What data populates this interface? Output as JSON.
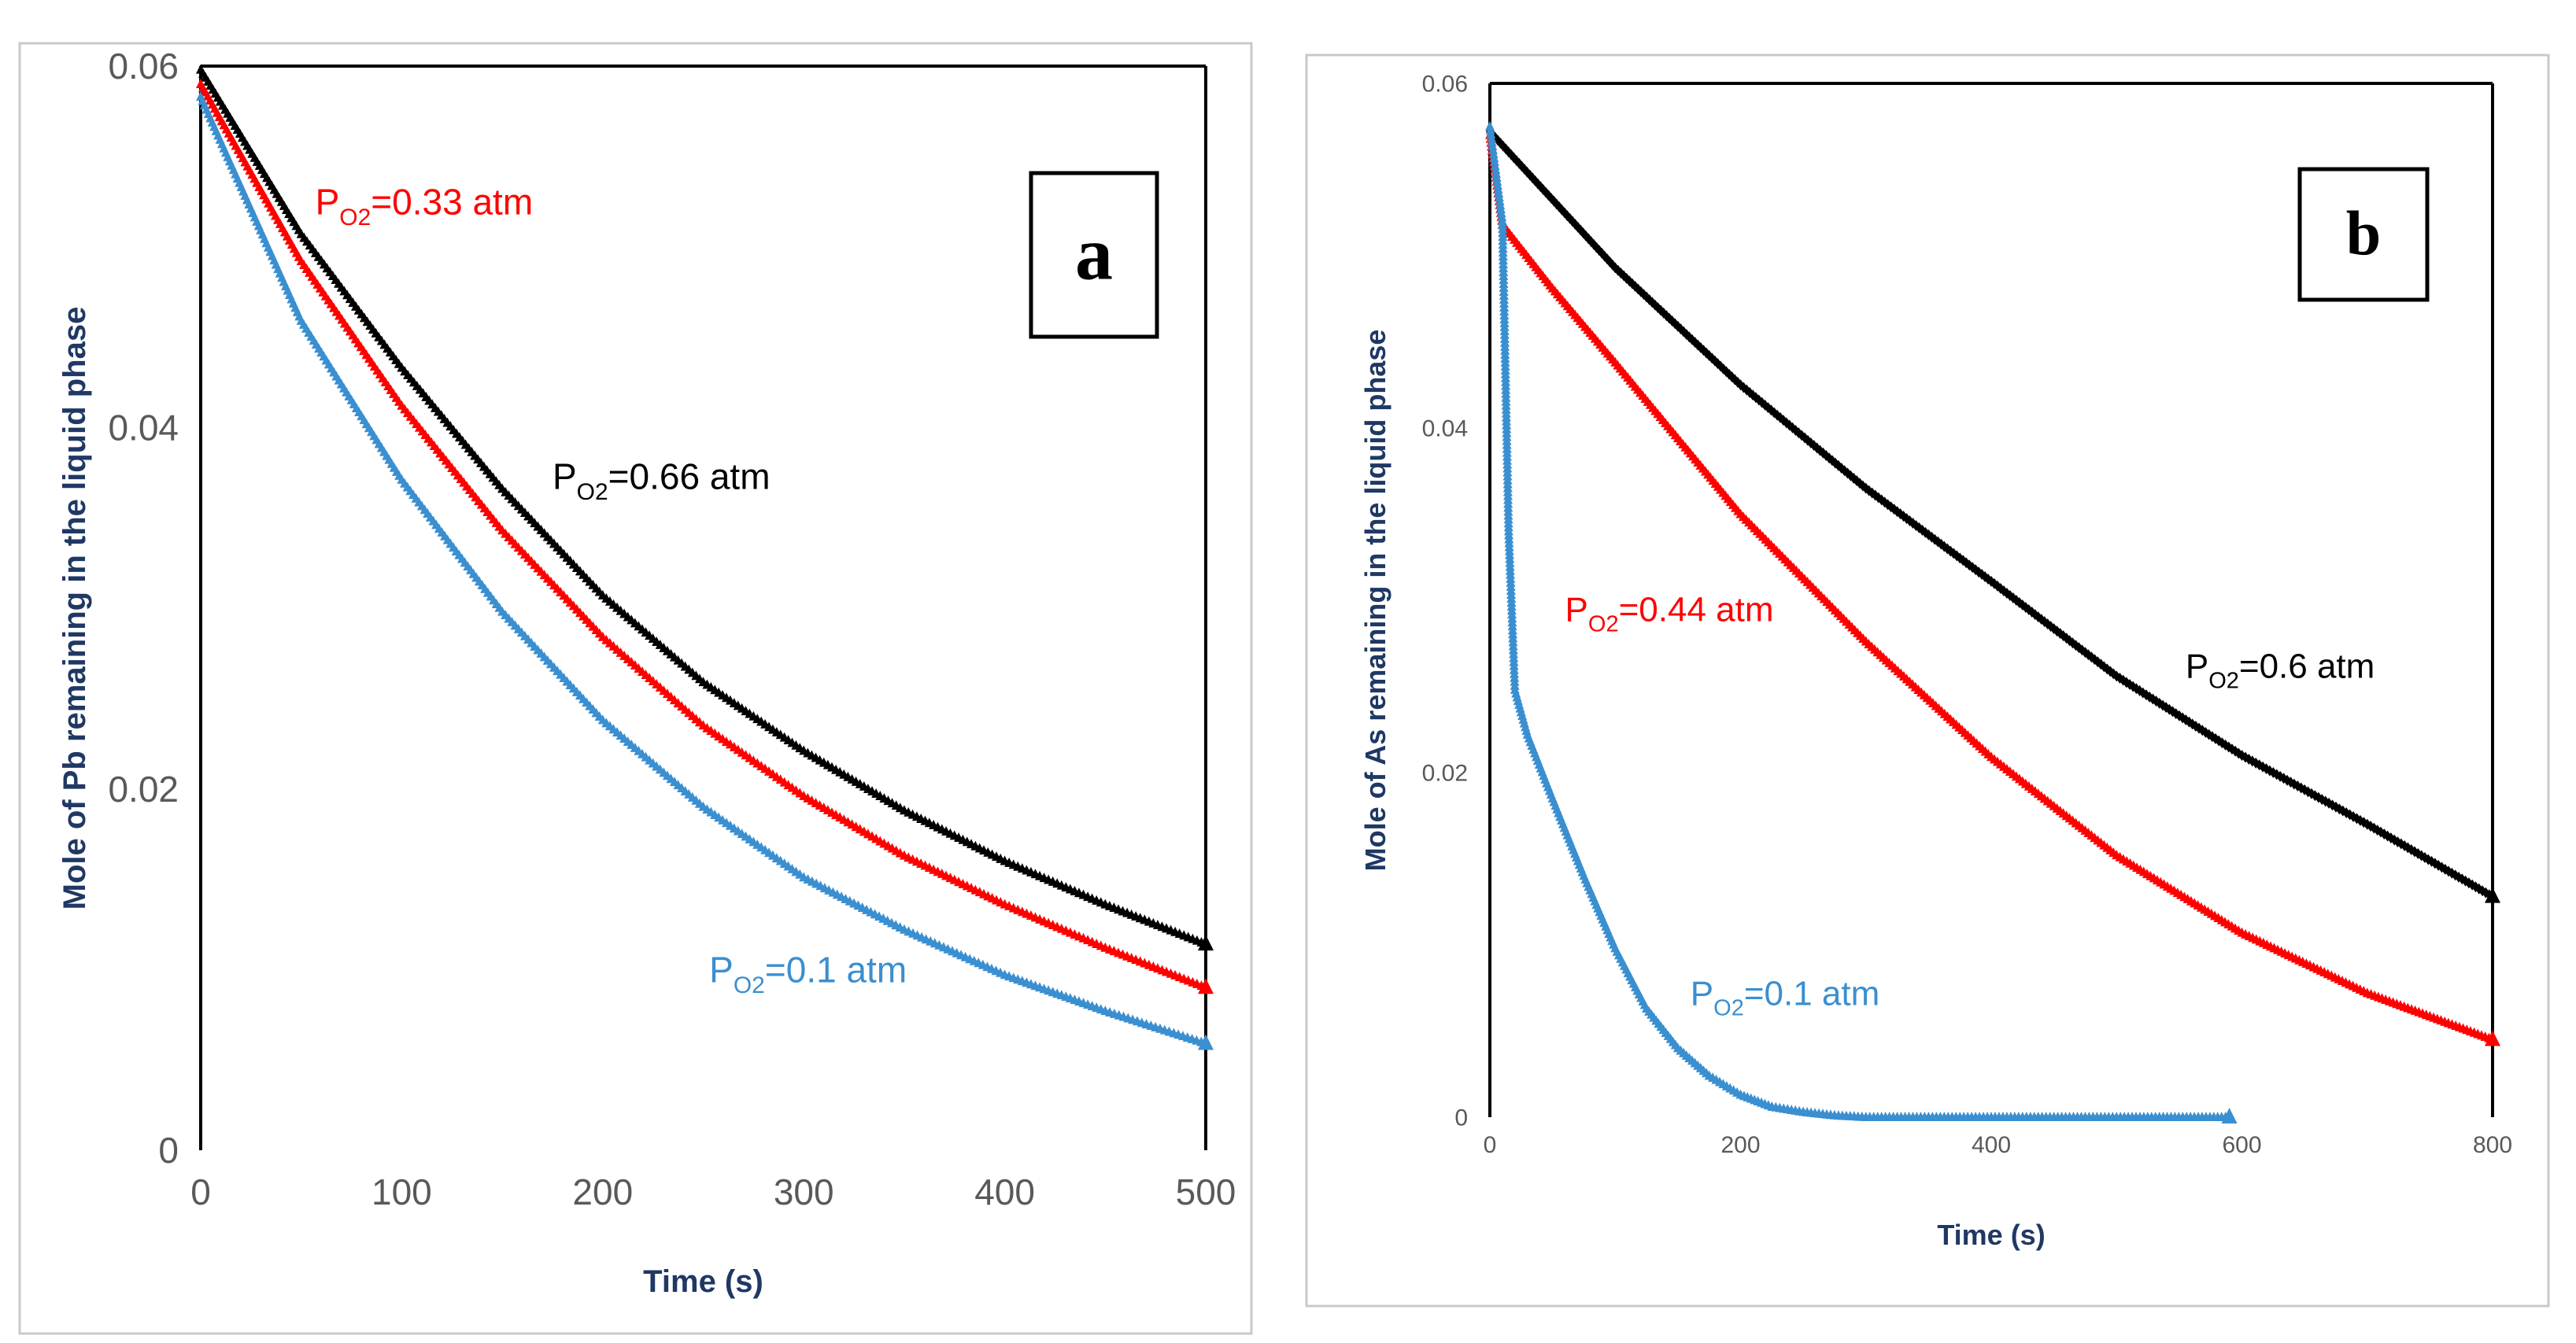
{
  "chart_data": [
    {
      "type": "line",
      "panel": "a",
      "xlabel": "Time (s)",
      "ylabel": "Mole of Pb remaining in the liquid phase",
      "xlim": [
        0,
        500
      ],
      "ylim": [
        0,
        0.06
      ],
      "xticks": [
        "0",
        "100",
        "200",
        "300",
        "400",
        "500"
      ],
      "yticks": [
        "0",
        "0.02",
        "0.04",
        "0.06"
      ],
      "grid": false,
      "series": [
        {
          "name": "P O2=0.66 atm",
          "sym": "P",
          "sub": "O2",
          "rest": "=0.66 atm",
          "color": "#000000",
          "marker": "triangle",
          "label_pos": [
            175,
            0.0366
          ],
          "x": [
            0,
            50,
            100,
            150,
            200,
            250,
            300,
            350,
            400,
            450,
            500
          ],
          "y": [
            0.0598,
            0.0507,
            0.0433,
            0.0366,
            0.0307,
            0.0259,
            0.0221,
            0.0188,
            0.016,
            0.0136,
            0.0114
          ]
        },
        {
          "name": "P O2=0.33 atm",
          "sym": "P",
          "sub": "O2",
          "rest": "=0.33 atm",
          "color": "#ff0000",
          "marker": "triangle",
          "label_pos": [
            57,
            0.0518
          ],
          "x": [
            0,
            50,
            100,
            150,
            200,
            250,
            300,
            350,
            400,
            450,
            500
          ],
          "y": [
            0.059,
            0.0492,
            0.0412,
            0.0343,
            0.0284,
            0.0235,
            0.0196,
            0.0163,
            0.0136,
            0.0112,
            0.009
          ]
        },
        {
          "name": "P O2=0.1 atm",
          "sym": "P",
          "sub": "O2",
          "rest": "=0.1 atm",
          "color": "#3a8fd0",
          "marker": "triangle",
          "label_pos": [
            253,
            0.0093
          ],
          "x": [
            0,
            50,
            100,
            150,
            200,
            250,
            300,
            350,
            400,
            450,
            500
          ],
          "y": [
            0.0583,
            0.0459,
            0.0371,
            0.0298,
            0.0238,
            0.019,
            0.0151,
            0.0122,
            0.0097,
            0.0077,
            0.0059
          ]
        }
      ],
      "annotations": [
        {
          "text": "a"
        }
      ]
    },
    {
      "type": "line",
      "panel": "b",
      "xlabel": "Time (s)",
      "ylabel": "Mole of As remaining in the liquid phase",
      "xlim": [
        0,
        800
      ],
      "ylim": [
        0,
        0.06
      ],
      "xticks": [
        "0",
        "200",
        "400",
        "600",
        "800"
      ],
      "yticks": [
        "0",
        "0.02",
        "0.04",
        "0.06"
      ],
      "grid": false,
      "series": [
        {
          "name": "P O2=0.6 atm",
          "sym": "P",
          "sub": "O2",
          "rest": "=0.6 atm",
          "color": "#000000",
          "marker": "diamond",
          "label_pos": [
            555,
            0.0255
          ],
          "x": [
            0,
            100,
            200,
            300,
            400,
            500,
            600,
            700,
            800
          ],
          "y": [
            0.0572,
            0.0493,
            0.0425,
            0.0365,
            0.0311,
            0.0256,
            0.021,
            0.017,
            0.0128
          ]
        },
        {
          "name": "P O2=0.44 atm",
          "sym": "P",
          "sub": "O2",
          "rest": "=0.44 atm",
          "color": "#ff0000",
          "marker": "triangle",
          "label_pos": [
            60,
            0.0288
          ],
          "x": [
            0,
            10,
            50,
            100,
            200,
            300,
            400,
            500,
            600,
            700,
            800
          ],
          "y": [
            0.057,
            0.0518,
            0.0481,
            0.0438,
            0.035,
            0.0276,
            0.0209,
            0.0152,
            0.0107,
            0.0072,
            0.0045
          ]
        },
        {
          "name": "P O2=0.1 atm",
          "sym": "P",
          "sub": "O2",
          "rest": "=0.1 atm",
          "color": "#3a8fd0",
          "marker": "triangle",
          "label_pos": [
            160,
            0.0065
          ],
          "x": [
            0,
            10,
            15,
            20,
            30,
            50,
            75,
            100,
            125,
            150,
            175,
            200,
            225,
            250,
            275,
            300,
            350,
            400,
            500,
            590
          ],
          "y": [
            0.0575,
            0.052,
            0.034,
            0.0248,
            0.0222,
            0.0185,
            0.014,
            0.0098,
            0.0063,
            0.004,
            0.0024,
            0.0013,
            0.0006,
            0.0003,
            0.0001,
            0,
            0,
            0,
            0,
            0
          ]
        }
      ],
      "annotations": [
        {
          "text": "b"
        }
      ]
    }
  ]
}
